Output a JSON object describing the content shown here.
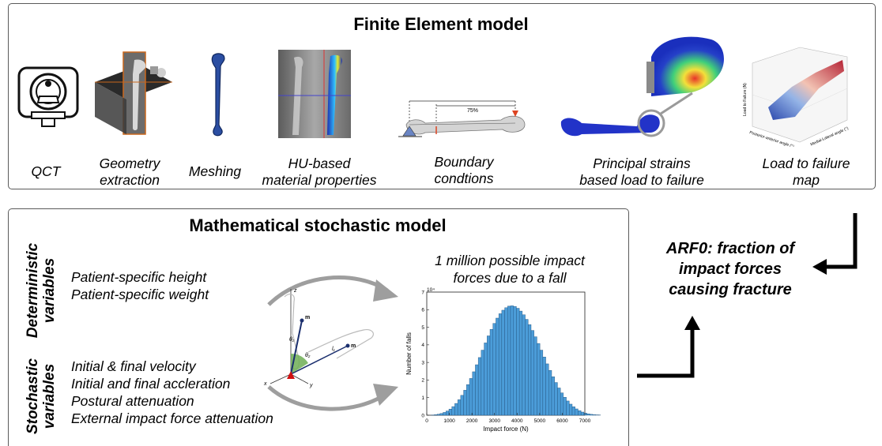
{
  "fe": {
    "title": "Finite Element model",
    "steps": [
      {
        "line1": "QCT",
        "line2": ""
      },
      {
        "line1": "Geometry",
        "line2": "extraction"
      },
      {
        "line1": "Meshing",
        "line2": ""
      },
      {
        "line1": "HU-based",
        "line2": "material properties"
      },
      {
        "line1": "Boundary",
        "line2": "condtions"
      },
      {
        "line1": "Principal strains",
        "line2": "based load to failure"
      },
      {
        "line1": "Load to failure",
        "line2": "map"
      }
    ],
    "boundary_percent": "75%",
    "map_labels": {
      "z": "Load to Failure (N)",
      "x": "Posterior-anterior angle (°)",
      "y": "Medial-Lateral angle (°)"
    }
  },
  "ms": {
    "title": "Mathematical stochastic model",
    "deterministic_label_1": "Deterministic",
    "deterministic_label_2": "variables",
    "deterministic_vars": [
      "Patient-specific height",
      "Patient-specific weight"
    ],
    "stochastic_label_1": "Stochastic",
    "stochastic_label_2": "variables",
    "stochastic_vars": [
      "Initial & final velocity",
      "Initial and final accleration",
      "Postural attenuation",
      "External impact force attenuation"
    ],
    "model_symbols": {
      "z": "z",
      "x": "x",
      "y": "y",
      "m1": "m",
      "m2": "m",
      "theta1": "θ₁",
      "theta2": "θ₂",
      "l1": "l₁"
    },
    "impact_caption_1": "1 million possible impact",
    "impact_caption_2": "forces due to a fall"
  },
  "chart_data": {
    "type": "bar",
    "xlabel": "Impact force (N)",
    "ylabel": "Number of falls",
    "y_exponent_label": "10⁴",
    "xlim": [
      0,
      7000
    ],
    "ylim": [
      0,
      7
    ],
    "xticks": [
      "0",
      "1000",
      "2000",
      "3000",
      "4000",
      "5000",
      "6000",
      "7000"
    ],
    "yticks": [
      "0",
      "1",
      "2",
      "3",
      "4",
      "5",
      "6",
      "7"
    ],
    "bin_width": 130,
    "bin_start": 200,
    "values": [
      0.01,
      0.03,
      0.06,
      0.1,
      0.16,
      0.24,
      0.35,
      0.49,
      0.67,
      0.88,
      1.13,
      1.42,
      1.74,
      2.09,
      2.47,
      2.87,
      3.28,
      3.7,
      4.11,
      4.51,
      4.88,
      5.22,
      5.52,
      5.77,
      5.97,
      6.11,
      6.2,
      6.22,
      6.18,
      6.08,
      5.92,
      5.71,
      5.45,
      5.15,
      4.82,
      4.46,
      4.08,
      3.7,
      3.31,
      2.92,
      2.55,
      2.19,
      1.86,
      1.55,
      1.27,
      1.02,
      0.81,
      0.63,
      0.48,
      0.36,
      0.26,
      0.18,
      0.12,
      0.08,
      0.05,
      0.03,
      0.02,
      0.01
    ]
  },
  "arf": {
    "line1": "ARF0: fraction of",
    "line2": "impact forces",
    "line3": "causing fracture"
  }
}
